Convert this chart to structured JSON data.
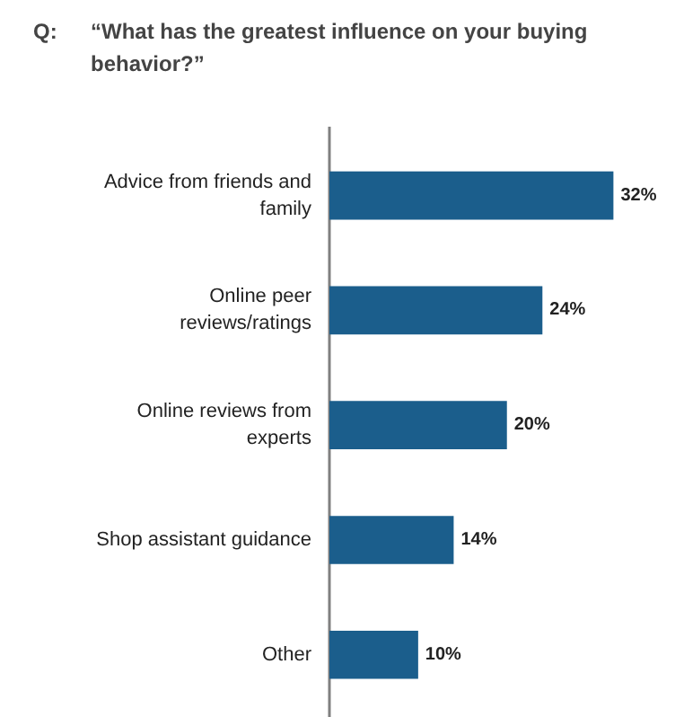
{
  "chart_data": {
    "type": "bar",
    "orientation": "horizontal",
    "title": "“What has the greatest influence on your buying behavior?”",
    "annotations": [
      "Q:"
    ],
    "categories": [
      "Advice from friends and family",
      "Online peer reviews/ratings",
      "Online reviews from experts",
      "Shop assistant guidance",
      "Other"
    ],
    "values": [
      32,
      24,
      20,
      14,
      10
    ],
    "value_labels": [
      "32%",
      "24%",
      "20%",
      "14%",
      "10%"
    ],
    "color": "#1b5e8c",
    "grid": false
  }
}
